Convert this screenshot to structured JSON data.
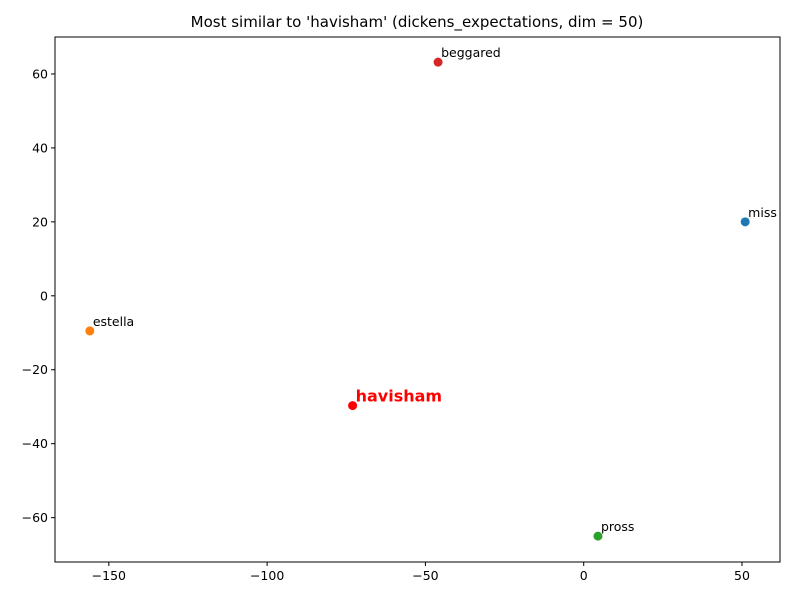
{
  "chart_data": {
    "type": "scatter",
    "title": "Most similar to 'havisham' (dickens_expectations, dim = 50)",
    "xlabel": "",
    "ylabel": "",
    "xlim": [
      -167,
      62
    ],
    "ylim": [
      -72,
      70
    ],
    "xticks": [
      -150,
      -100,
      -50,
      0,
      50
    ],
    "yticks": [
      -60,
      -40,
      -20,
      0,
      20,
      40,
      60
    ],
    "grid": false,
    "points": [
      {
        "label": "miss",
        "x": 51,
        "y": 20,
        "color": "#1f77b4",
        "highlight": false
      },
      {
        "label": "estella",
        "x": -156,
        "y": -9.5,
        "color": "#ff7f0e",
        "highlight": false
      },
      {
        "label": "pross",
        "x": 4.5,
        "y": -65,
        "color": "#2ca02c",
        "highlight": false
      },
      {
        "label": "beggared",
        "x": -46,
        "y": 63.2,
        "color": "#d62728",
        "highlight": false
      },
      {
        "label": "havisham",
        "x": -73,
        "y": -29.7,
        "color": "#ff0000",
        "highlight": true
      }
    ]
  }
}
